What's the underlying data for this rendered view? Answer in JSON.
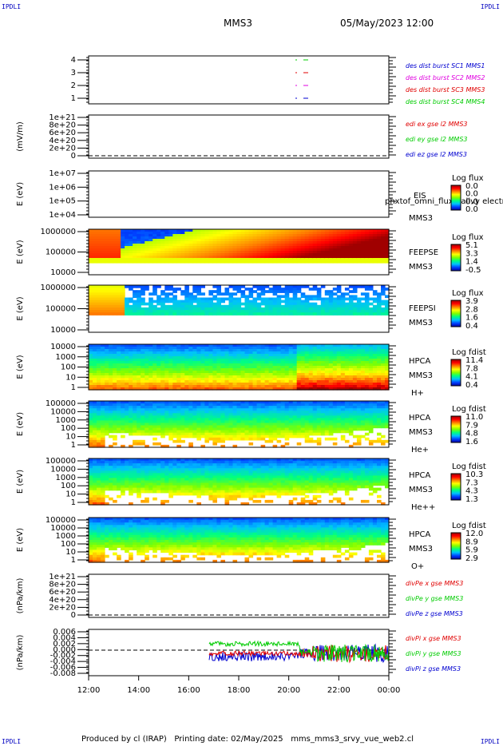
{
  "corners": {
    "top_left": "IPDLI",
    "top_right": "IPDLI",
    "bottom_left": "IPDLI",
    "bottom_right": "IPDLI"
  },
  "header": {
    "title": "MMS3",
    "datetime": "05/May/2023 12:00"
  },
  "footer": {
    "text": "Produced by cl (IRAP)   Printing date: 02/May/2025   mms_mms3_srvy_vue_web2.cl"
  },
  "colors": {
    "red": "#e00000",
    "green": "#00cc00",
    "blue": "#0000d0",
    "magenta": "#e000e0"
  },
  "colorbar_gradient": [
    "#0000a0",
    "#0040ff",
    "#00c0ff",
    "#00ff80",
    "#80ff00",
    "#ffff00",
    "#ff8000",
    "#ff0000",
    "#a00000"
  ],
  "chart_data": {
    "type": "heatmap",
    "x_axis": {
      "ticks": [
        "12:00",
        "14:00",
        "16:00",
        "18:00",
        "20:00",
        "22:00",
        "00:00"
      ],
      "range": [
        "12:00",
        "00:00"
      ]
    },
    "panels": [
      {
        "id": "burst",
        "type": "scatter",
        "yticks": [
          "4",
          "3",
          "2",
          "1"
        ],
        "ylabel": "",
        "legend": [
          {
            "text": "des dist burst SC1 MMS1",
            "color": "#0000d0"
          },
          {
            "text": "des dist burst SC2 MMS2",
            "color": "#e000e0"
          },
          {
            "text": "des dist burst SC3 MMS3",
            "color": "#e00000"
          },
          {
            "text": "des dist burst SC4 MMS4",
            "color": "#00cc00"
          }
        ]
      },
      {
        "id": "edi",
        "type": "line",
        "yticks": [
          "1e+21",
          "8e+20",
          "6e+20",
          "4e+20",
          "2e+20",
          "0"
        ],
        "ylabel": "(mV/m)",
        "legend": [
          {
            "text": "edi ex gse l2 MMS3",
            "color": "#e00000"
          },
          {
            "text": "edi ey gse l2 MMS3",
            "color": "#00cc00"
          },
          {
            "text": "edi ez gse l2 MMS3",
            "color": "#0000d0"
          }
        ]
      },
      {
        "id": "eis",
        "type": "heatmap",
        "yticks": [
          "1e+07",
          "1e+06",
          "1e+05",
          "1e+04"
        ],
        "ylabel": "E (eV)",
        "labels": [
          "EIS",
          "MMS3"
        ],
        "overlay": "phxtof_omni_flux / allvy electron to",
        "cb_title": "Log flux",
        "cb_values": [
          "0.0",
          "0.0",
          "0.0",
          "0.0"
        ]
      },
      {
        "id": "feepse",
        "type": "heatmap",
        "yticks": [
          "1000000",
          "100000",
          "10000"
        ],
        "ylabel": "E (eV)",
        "labels": [
          "FEEPSE",
          "MMS3"
        ],
        "cb_title": "Log flux",
        "cb_values": [
          "5.1",
          "3.3",
          "1.4",
          "-0.5"
        ]
      },
      {
        "id": "feepsi",
        "type": "heatmap",
        "yticks": [
          "1000000",
          "100000",
          "10000"
        ],
        "ylabel": "E (eV)",
        "labels": [
          "FEEPSI",
          "MMS3"
        ],
        "cb_title": "Log flux",
        "cb_values": [
          "3.9",
          "2.8",
          "1.6",
          "0.4"
        ]
      },
      {
        "id": "hpca_h",
        "type": "heatmap",
        "yticks": [
          "10000",
          "1000",
          "100",
          "10",
          "1"
        ],
        "ylabel": "E (eV)",
        "labels": [
          "HPCA",
          "MMS3",
          "H+"
        ],
        "cb_title": "Log fdist",
        "cb_values": [
          "11.4",
          "7.8",
          "4.1",
          "0.4"
        ]
      },
      {
        "id": "hpca_he",
        "type": "heatmap",
        "yticks": [
          "100000",
          "10000",
          "1000",
          "100",
          "10",
          "1"
        ],
        "ylabel": "E (eV)",
        "labels": [
          "HPCA",
          "MMS3",
          "He+"
        ],
        "cb_title": "Log fdist",
        "cb_values": [
          "11.0",
          "7.9",
          "4.8",
          "1.6"
        ]
      },
      {
        "id": "hpca_hepp",
        "type": "heatmap",
        "yticks": [
          "100000",
          "10000",
          "1000",
          "100",
          "10",
          "1"
        ],
        "ylabel": "E (eV)",
        "labels": [
          "HPCA",
          "MMS3",
          "He++"
        ],
        "cb_title": "Log fdist",
        "cb_values": [
          "10.3",
          "7.3",
          "4.3",
          "1.3"
        ]
      },
      {
        "id": "hpca_o",
        "type": "heatmap",
        "yticks": [
          "100000",
          "10000",
          "1000",
          "100",
          "10",
          "1"
        ],
        "ylabel": "E (eV)",
        "labels": [
          "HPCA",
          "MMS3",
          "O+"
        ],
        "cb_title": "Log fdist",
        "cb_values": [
          "12.0",
          "8.9",
          "5.9",
          "2.9"
        ]
      },
      {
        "id": "divpe",
        "type": "line",
        "yticks": [
          "1e+21",
          "8e+20",
          "6e+20",
          "4e+20",
          "2e+20",
          "0"
        ],
        "ylabel": "(nPa/km)",
        "legend": [
          {
            "text": "divPe x gse MMS3",
            "color": "#e00000"
          },
          {
            "text": "divPe y gse MMS3",
            "color": "#00cc00"
          },
          {
            "text": "divPe z gse MMS3",
            "color": "#0000d0"
          }
        ]
      },
      {
        "id": "divpi",
        "type": "line",
        "yticks": [
          "0.006",
          "0.004",
          "0.002",
          "0.000",
          "-0.002",
          "-0.004",
          "-0.006",
          "-0.008"
        ],
        "ylabel": "(nPa/km)",
        "legend": [
          {
            "text": "divPi x gse MMS3",
            "color": "#e00000"
          },
          {
            "text": "divPi y gse MMS3",
            "color": "#00cc00"
          },
          {
            "text": "divPi z gse MMS3",
            "color": "#0000d0"
          }
        ]
      }
    ]
  }
}
